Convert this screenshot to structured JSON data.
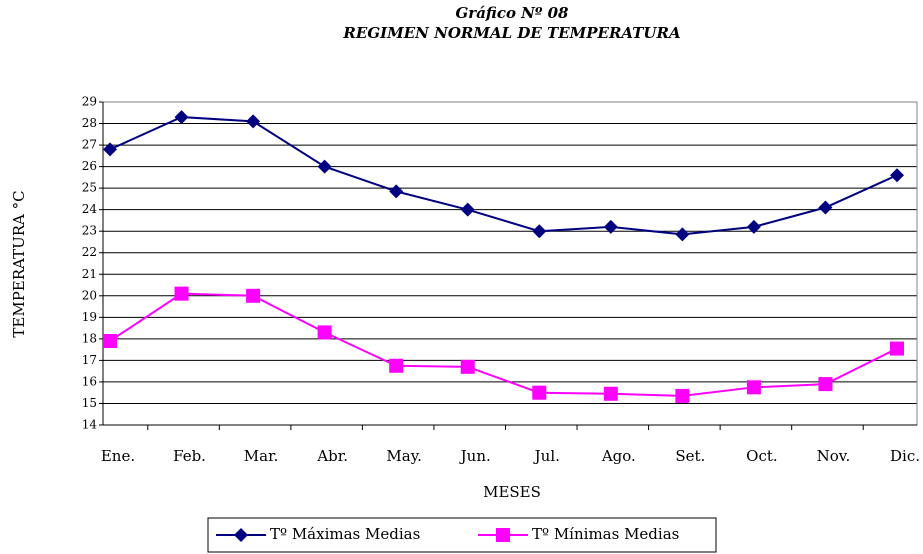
{
  "chart_data": {
    "type": "line",
    "title": "Gráfico Nº 08",
    "subtitle": "REGIMEN NORMAL DE TEMPERATURA",
    "x_label": "MESES",
    "y_label": "TEMPERATURA °C",
    "categories": [
      "Ene.",
      "Feb.",
      "Mar.",
      "Abr.",
      "May.",
      "Jun.",
      "Jul.",
      "Ago.",
      "Set.",
      "Oct.",
      "Nov.",
      "Dic."
    ],
    "series": [
      {
        "name": "Tº Máximas Medias",
        "color": "#000080",
        "marker": "diamond",
        "values": [
          26.8,
          28.3,
          28.1,
          26.0,
          24.85,
          24.0,
          23.0,
          23.2,
          22.85,
          23.2,
          24.1,
          25.6
        ]
      },
      {
        "name": "Tº Mínimas Medias",
        "color": "#ff00ff",
        "marker": "square",
        "values": [
          17.9,
          20.1,
          20.0,
          18.3,
          16.75,
          16.7,
          15.5,
          15.45,
          15.35,
          15.75,
          15.9,
          17.55
        ]
      }
    ],
    "ylim": [
      14,
      29
    ],
    "yticks": [
      14,
      15,
      16,
      17,
      18,
      19,
      20,
      21,
      22,
      23,
      24,
      25,
      26,
      27,
      28,
      29
    ],
    "grid": true,
    "legend": "bottom"
  }
}
